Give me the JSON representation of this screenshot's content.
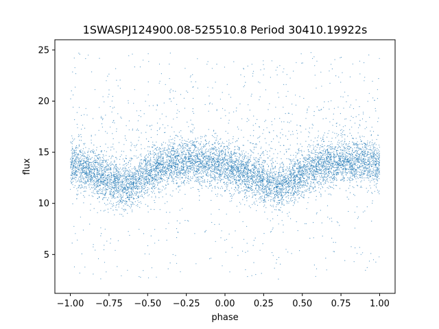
{
  "chart_data": {
    "type": "scatter",
    "title": "1SWASPJ124900.08-525510.8 Period 30410.19922s",
    "xlabel": "phase",
    "ylabel": "flux",
    "xlim": [
      -1.1,
      1.1
    ],
    "ylim": [
      1.2,
      26.0
    ],
    "x_ticks": [
      -1.0,
      -0.75,
      -0.5,
      -0.25,
      0.0,
      0.25,
      0.5,
      0.75,
      1.0
    ],
    "x_tick_labels": [
      "−1.00",
      "−0.75",
      "−0.50",
      "−0.25",
      "0.00",
      "0.25",
      "0.50",
      "0.75",
      "1.00"
    ],
    "y_ticks": [
      5,
      10,
      15,
      20,
      25
    ],
    "y_tick_labels": [
      "5",
      "10",
      "15",
      "20",
      "25"
    ],
    "grid": false,
    "marker_color": "#1f77b4",
    "series": [
      {
        "phase_range": [
          -1.0,
          1.0
        ],
        "trend_phase": [
          -1.0,
          -0.9,
          -0.8,
          -0.7,
          -0.65,
          -0.6,
          -0.5,
          -0.4,
          -0.3,
          -0.2,
          -0.1,
          0.0,
          0.1,
          0.2,
          0.3,
          0.35,
          0.4,
          0.5,
          0.6,
          0.7,
          0.8,
          0.9,
          1.0
        ],
        "trend_flux": [
          13.8,
          13.3,
          12.6,
          11.9,
          11.6,
          11.9,
          12.9,
          13.6,
          14.0,
          14.2,
          13.9,
          13.6,
          13.2,
          12.6,
          11.9,
          11.6,
          11.9,
          12.9,
          13.6,
          14.0,
          14.2,
          13.9,
          13.8
        ],
        "scatter_sd": 1.1,
        "outlier_range": [
          2.5,
          24.8
        ]
      }
    ]
  }
}
